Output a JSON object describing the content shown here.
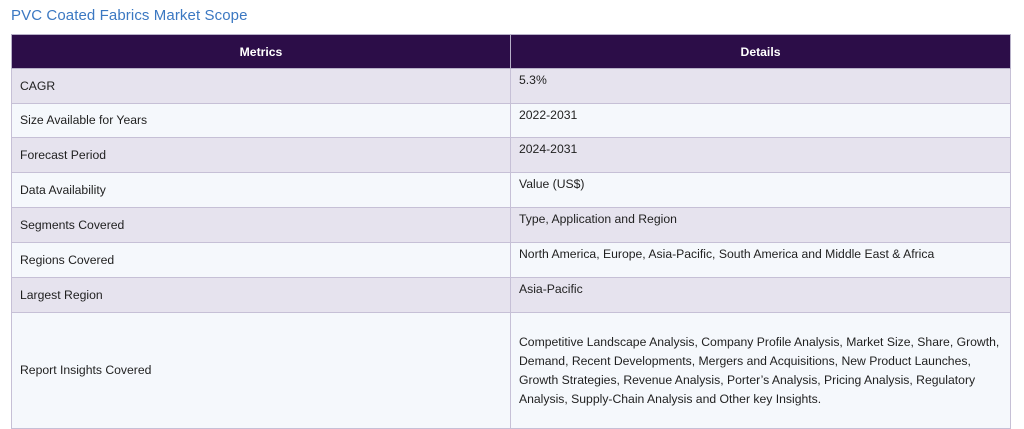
{
  "title": "PVC Coated Fabrics Market Scope",
  "table": {
    "headers": {
      "metrics": "Metrics",
      "details": "Details"
    },
    "rows": [
      {
        "metric": "CAGR",
        "detail": "5.3%"
      },
      {
        "metric": "Size Available for Years",
        "detail": "2022-2031"
      },
      {
        "metric": "Forecast Period",
        "detail": "2024-2031"
      },
      {
        "metric": "Data Availability",
        "detail": "Value (US$)"
      },
      {
        "metric": "Segments Covered",
        "detail": "Type, Application and Region"
      },
      {
        "metric": "Regions Covered",
        "detail": "North America, Europe, Asia-Pacific, South America and Middle East & Africa"
      },
      {
        "metric": "Largest Region",
        "detail": "Asia-Pacific"
      },
      {
        "metric": "Report Insights Covered",
        "detail": "Competitive Landscape Analysis, Company Profile Analysis, Market Size, Share, Growth, Demand, Recent Developments, Mergers and Acquisitions, New Product Launches, Growth Strategies, Revenue Analysis, Porter’s Analysis, Pricing Analysis, Regulatory Analysis, Supply-Chain Analysis and Other key Insights."
      }
    ]
  },
  "colors": {
    "title": "#3b78c2",
    "header_bg": "#2c0d48",
    "row_odd_bg": "#e6e3ee",
    "row_even_bg": "#f5f8fc"
  }
}
